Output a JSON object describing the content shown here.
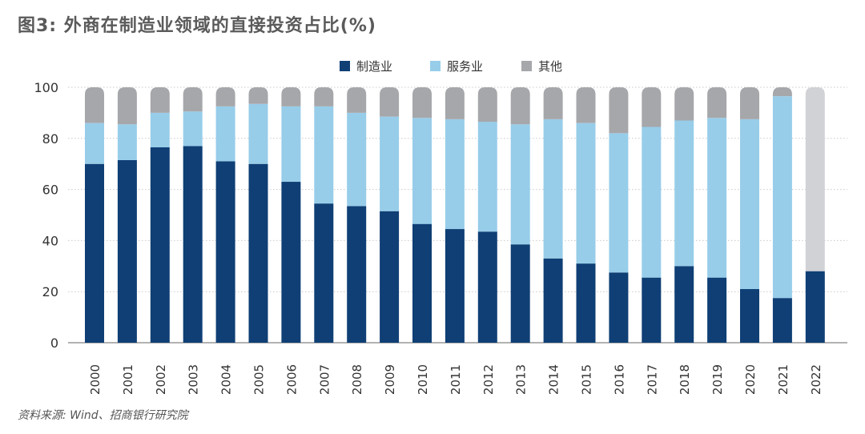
{
  "header": {
    "title": "图3: 外商在制造业领域的直接投资占比(%)"
  },
  "footer": {
    "source": "资料来源: Wind、招商银行研究院"
  },
  "chart_data": {
    "type": "bar",
    "stacked": true,
    "categories": [
      "2000",
      "2001",
      "2002",
      "2003",
      "2004",
      "2005",
      "2006",
      "2007",
      "2008",
      "2009",
      "2010",
      "2011",
      "2012",
      "2013",
      "2014",
      "2015",
      "2016",
      "2017",
      "2018",
      "2019",
      "2020",
      "2021",
      "2022"
    ],
    "series": [
      {
        "name": "制造业",
        "color": "#0f3f75",
        "values": [
          70,
          71.5,
          76.5,
          77,
          71,
          70,
          63,
          54.5,
          53.5,
          51.5,
          46.5,
          44.5,
          43.5,
          38.5,
          33,
          31,
          27.5,
          25.5,
          30,
          25.5,
          21,
          17.5,
          28
        ]
      },
      {
        "name": "服务业",
        "color": "#97cde9",
        "values": [
          16,
          14,
          13.5,
          13.5,
          21.5,
          23.5,
          29.5,
          38,
          36.5,
          37,
          41.5,
          43,
          43,
          47,
          54.5,
          55,
          54.5,
          59,
          57,
          62.5,
          66.5,
          79,
          0
        ]
      },
      {
        "name": "其他",
        "color": "#a6a7ab",
        "values": [
          14,
          14.5,
          10,
          9.5,
          7.5,
          6.5,
          7.5,
          7.5,
          10,
          11.5,
          12,
          12.5,
          13.5,
          14.5,
          12.5,
          14,
          18,
          15.5,
          13,
          12,
          12.5,
          3.5,
          72
        ]
      }
    ],
    "highlight": {
      "category": "2022",
      "series": "其他",
      "color": "#d1d2d6"
    },
    "yaxis": {
      "min": 0,
      "max": 100,
      "ticks": [
        0,
        20,
        40,
        60,
        80,
        100
      ]
    },
    "grid": true,
    "legend_position": "top-center"
  }
}
